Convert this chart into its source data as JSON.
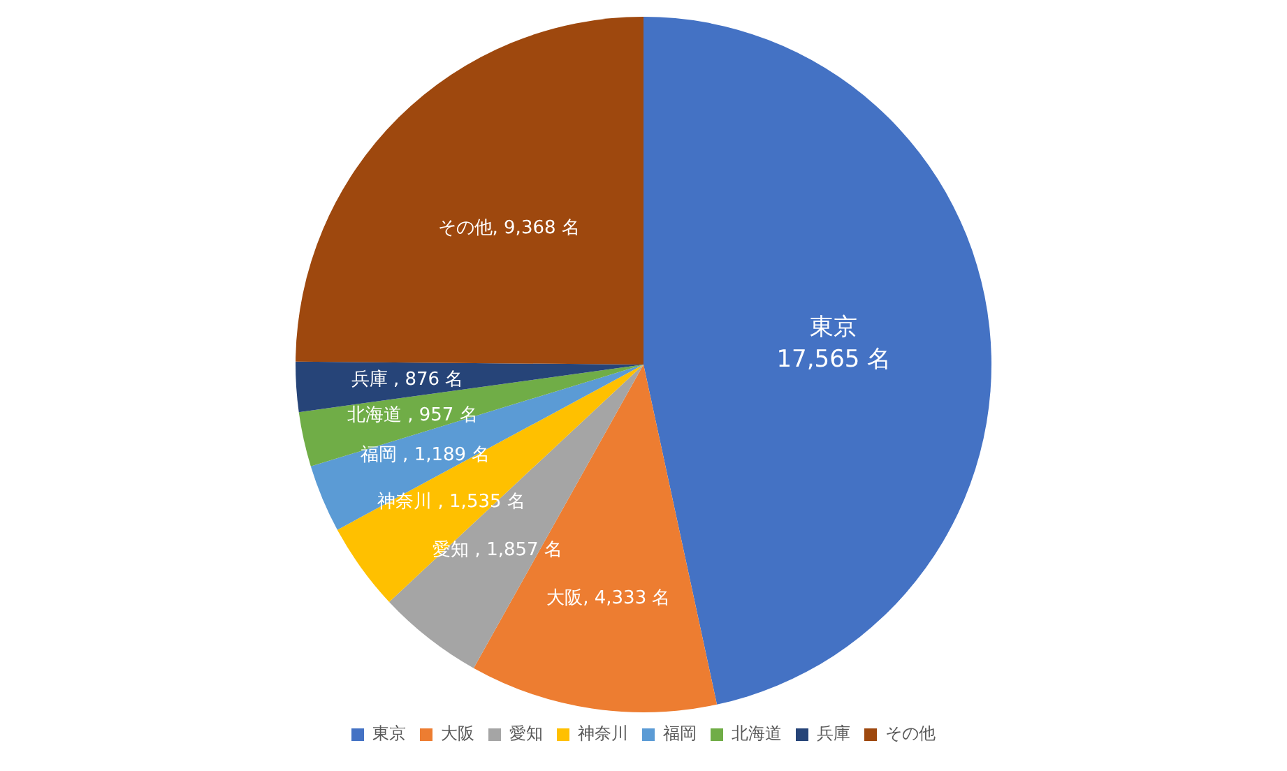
{
  "chart_data": {
    "type": "pie",
    "categories": [
      "東京",
      "大阪",
      "愛知",
      "神奈川",
      "福岡",
      "北海道",
      "兵庫",
      "その他"
    ],
    "values": [
      17565,
      4333,
      1857,
      1535,
      1189,
      957,
      876,
      9368
    ],
    "colors": [
      "#4472c4",
      "#ed7d31",
      "#a5a5a5",
      "#ffc000",
      "#5b9bd5",
      "#70ad47",
      "#264478",
      "#9e480e"
    ],
    "value_labels": [
      "東京\n17,565 名",
      "大阪, 4,333 名",
      "愛知 , 1,857 名",
      "神奈川 , 1,535 名",
      "福岡 , 1,189 名",
      "北海道 , 957 名",
      "兵庫 , 876 名",
      "その他, 9,368 名"
    ],
    "legend": "bottom"
  }
}
